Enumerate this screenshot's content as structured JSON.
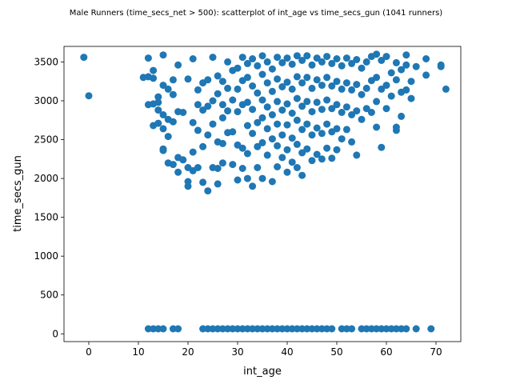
{
  "chart_data": {
    "type": "scatter",
    "title": "Male Runners (time_secs_net > 500): scatterplot of int_age vs time_secs_gun (1041 runners)",
    "xlabel": "int_age",
    "ylabel": "time_secs_gun",
    "xlim": [
      -5,
      75
    ],
    "ylim": [
      -100,
      3700
    ],
    "xticks": [
      0,
      10,
      20,
      30,
      40,
      50,
      60,
      70
    ],
    "yticks": [
      0,
      500,
      1000,
      1500,
      2000,
      2500,
      3000,
      3500
    ],
    "grid": false,
    "marker_color": "#1f77b4",
    "series": [
      {
        "points": [
          [
            -1,
            3560
          ],
          [
            0,
            3065
          ],
          [
            11,
            3300
          ],
          [
            12,
            3550
          ],
          [
            12,
            3310
          ],
          [
            12,
            2950
          ],
          [
            13,
            3390
          ],
          [
            13,
            3290
          ],
          [
            13,
            2960
          ],
          [
            13,
            2680
          ],
          [
            14,
            3050
          ],
          [
            14,
            2980
          ],
          [
            14,
            2880
          ],
          [
            14,
            2710
          ],
          [
            15,
            3590
          ],
          [
            15,
            3200
          ],
          [
            15,
            2820
          ],
          [
            15,
            2640
          ],
          [
            15,
            2380
          ],
          [
            15,
            2360
          ],
          [
            16,
            3150
          ],
          [
            16,
            2760
          ],
          [
            16,
            2200
          ],
          [
            16,
            2540
          ],
          [
            17,
            3270
          ],
          [
            17,
            3080
          ],
          [
            17,
            2730
          ],
          [
            17,
            2180
          ],
          [
            18,
            3460
          ],
          [
            18,
            2860
          ],
          [
            18,
            2270
          ],
          [
            18,
            2080
          ],
          [
            19,
            2850
          ],
          [
            19,
            2240
          ],
          [
            20,
            3280
          ],
          [
            20,
            2140
          ],
          [
            20,
            1960
          ],
          [
            20,
            1900
          ],
          [
            21,
            3540
          ],
          [
            21,
            2720
          ],
          [
            21,
            2340
          ],
          [
            21,
            2100
          ],
          [
            22,
            3140
          ],
          [
            22,
            2950
          ],
          [
            22,
            2620
          ],
          [
            22,
            2140
          ],
          [
            23,
            3230
          ],
          [
            23,
            2880
          ],
          [
            23,
            2410
          ],
          [
            23,
            1950
          ],
          [
            24,
            3270
          ],
          [
            24,
            2930
          ],
          [
            24,
            2560
          ],
          [
            24,
            1840
          ],
          [
            25,
            3560
          ],
          [
            25,
            3000
          ],
          [
            25,
            2700
          ],
          [
            25,
            2140
          ],
          [
            26,
            3320
          ],
          [
            26,
            3090
          ],
          [
            26,
            2470
          ],
          [
            26,
            2130
          ],
          [
            26,
            1930
          ],
          [
            27,
            3250
          ],
          [
            27,
            2950
          ],
          [
            27,
            2780
          ],
          [
            27,
            2450
          ],
          [
            27,
            2200
          ],
          [
            28,
            3500
          ],
          [
            28,
            3160
          ],
          [
            28,
            2870
          ],
          [
            28,
            2590
          ],
          [
            29,
            3390
          ],
          [
            29,
            3010
          ],
          [
            29,
            2600
          ],
          [
            29,
            2180
          ],
          [
            30,
            3420
          ],
          [
            30,
            3150
          ],
          [
            30,
            2860
          ],
          [
            30,
            2430
          ],
          [
            30,
            1980
          ],
          [
            31,
            3560
          ],
          [
            31,
            3260
          ],
          [
            31,
            2950
          ],
          [
            31,
            2390
          ],
          [
            31,
            2130
          ],
          [
            32,
            3480
          ],
          [
            32,
            3300
          ],
          [
            32,
            2980
          ],
          [
            32,
            2680
          ],
          [
            32,
            2320
          ],
          [
            32,
            2000
          ],
          [
            33,
            3540
          ],
          [
            33,
            3190
          ],
          [
            33,
            2890
          ],
          [
            33,
            2580
          ],
          [
            33,
            1900
          ],
          [
            34,
            3450
          ],
          [
            34,
            3100
          ],
          [
            34,
            2720
          ],
          [
            34,
            2410
          ],
          [
            34,
            2140
          ],
          [
            35,
            3580
          ],
          [
            35,
            3340
          ],
          [
            35,
            3010
          ],
          [
            35,
            2780
          ],
          [
            35,
            2460
          ],
          [
            35,
            2000
          ],
          [
            36,
            3500
          ],
          [
            36,
            3230
          ],
          [
            36,
            2920
          ],
          [
            36,
            2640
          ],
          [
            36,
            2300
          ],
          [
            37,
            3410
          ],
          [
            37,
            3120
          ],
          [
            37,
            2820
          ],
          [
            37,
            2510
          ],
          [
            37,
            1960
          ],
          [
            38,
            3560
          ],
          [
            38,
            3280
          ],
          [
            38,
            2990
          ],
          [
            38,
            2700
          ],
          [
            38,
            2420
          ],
          [
            38,
            2150
          ],
          [
            39,
            3490
          ],
          [
            39,
            3180
          ],
          [
            39,
            2880
          ],
          [
            39,
            2560
          ],
          [
            39,
            2270
          ],
          [
            40,
            3550
          ],
          [
            40,
            3240
          ],
          [
            40,
            2960
          ],
          [
            40,
            2690
          ],
          [
            40,
            2370
          ],
          [
            40,
            2080
          ],
          [
            41,
            3470
          ],
          [
            41,
            3150
          ],
          [
            41,
            2840
          ],
          [
            41,
            2520
          ],
          [
            41,
            2210
          ],
          [
            42,
            3580
          ],
          [
            42,
            3310
          ],
          [
            42,
            3030
          ],
          [
            42,
            2750
          ],
          [
            42,
            2440
          ],
          [
            42,
            2140
          ],
          [
            43,
            3520
          ],
          [
            43,
            3230
          ],
          [
            43,
            2930
          ],
          [
            43,
            2630
          ],
          [
            43,
            2330
          ],
          [
            43,
            2040
          ],
          [
            44,
            3580
          ],
          [
            44,
            3300
          ],
          [
            44,
            2990
          ],
          [
            44,
            2700
          ],
          [
            44,
            2380
          ],
          [
            45,
            3460
          ],
          [
            45,
            3160
          ],
          [
            45,
            2860
          ],
          [
            45,
            2560
          ],
          [
            45,
            2230
          ],
          [
            46,
            3550
          ],
          [
            46,
            3270
          ],
          [
            46,
            2980
          ],
          [
            46,
            2650
          ],
          [
            46,
            2310
          ],
          [
            47,
            3500
          ],
          [
            47,
            3200
          ],
          [
            47,
            2890
          ],
          [
            47,
            2580
          ],
          [
            47,
            2250
          ],
          [
            48,
            3570
          ],
          [
            48,
            3300
          ],
          [
            48,
            3010
          ],
          [
            48,
            2700
          ],
          [
            48,
            2390
          ],
          [
            49,
            3480
          ],
          [
            49,
            3190
          ],
          [
            49,
            2900
          ],
          [
            49,
            2600
          ],
          [
            49,
            2260
          ],
          [
            50,
            3540
          ],
          [
            50,
            3250
          ],
          [
            50,
            2950
          ],
          [
            50,
            2640
          ],
          [
            50,
            2370
          ],
          [
            51,
            3450
          ],
          [
            51,
            3150
          ],
          [
            51,
            2850
          ],
          [
            51,
            2510
          ],
          [
            52,
            3550
          ],
          [
            52,
            3230
          ],
          [
            52,
            2920
          ],
          [
            52,
            2630
          ],
          [
            53,
            3480
          ],
          [
            53,
            3140
          ],
          [
            53,
            2820
          ],
          [
            53,
            2470
          ],
          [
            54,
            3530
          ],
          [
            54,
            3210
          ],
          [
            54,
            2870
          ],
          [
            54,
            2300
          ],
          [
            55,
            3420
          ],
          [
            55,
            3080
          ],
          [
            55,
            2760
          ],
          [
            56,
            3500
          ],
          [
            56,
            3160
          ],
          [
            56,
            2900
          ],
          [
            57,
            3570
          ],
          [
            57,
            3260
          ],
          [
            57,
            2850
          ],
          [
            58,
            3600
          ],
          [
            58,
            3300
          ],
          [
            58,
            2990
          ],
          [
            58,
            2660
          ],
          [
            59,
            3520
          ],
          [
            59,
            3150
          ],
          [
            59,
            2400
          ],
          [
            60,
            3570
          ],
          [
            60,
            3200
          ],
          [
            60,
            2900
          ],
          [
            61,
            3360
          ],
          [
            61,
            3060
          ],
          [
            62,
            3490
          ],
          [
            62,
            3270
          ],
          [
            62,
            2660
          ],
          [
            62,
            2620
          ],
          [
            63,
            3400
          ],
          [
            63,
            3110
          ],
          [
            63,
            2800
          ],
          [
            64,
            3590
          ],
          [
            64,
            3460
          ],
          [
            64,
            3140
          ],
          [
            65,
            3250
          ],
          [
            65,
            3030
          ],
          [
            66,
            3440
          ],
          [
            68,
            3540
          ],
          [
            68,
            3330
          ],
          [
            71,
            3460
          ],
          [
            71,
            3440
          ],
          [
            72,
            3150
          ],
          [
            12,
            65
          ],
          [
            13,
            65
          ],
          [
            14,
            65
          ],
          [
            15,
            65
          ],
          [
            17,
            65
          ],
          [
            18,
            65
          ],
          [
            23,
            65
          ],
          [
            24,
            65
          ],
          [
            25,
            65
          ],
          [
            26,
            65
          ],
          [
            27,
            65
          ],
          [
            28,
            65
          ],
          [
            29,
            65
          ],
          [
            30,
            65
          ],
          [
            31,
            65
          ],
          [
            32,
            65
          ],
          [
            33,
            65
          ],
          [
            34,
            65
          ],
          [
            35,
            65
          ],
          [
            36,
            65
          ],
          [
            37,
            65
          ],
          [
            38,
            65
          ],
          [
            39,
            65
          ],
          [
            40,
            65
          ],
          [
            41,
            65
          ],
          [
            42,
            65
          ],
          [
            43,
            65
          ],
          [
            44,
            65
          ],
          [
            45,
            65
          ],
          [
            46,
            65
          ],
          [
            47,
            65
          ],
          [
            48,
            65
          ],
          [
            49,
            65
          ],
          [
            51,
            65
          ],
          [
            52,
            65
          ],
          [
            53,
            65
          ],
          [
            55,
            65
          ],
          [
            56,
            65
          ],
          [
            57,
            65
          ],
          [
            58,
            65
          ],
          [
            59,
            65
          ],
          [
            60,
            65
          ],
          [
            61,
            65
          ],
          [
            62,
            65
          ],
          [
            63,
            65
          ],
          [
            64,
            65
          ],
          [
            66,
            65
          ],
          [
            69,
            65
          ]
        ]
      }
    ]
  }
}
